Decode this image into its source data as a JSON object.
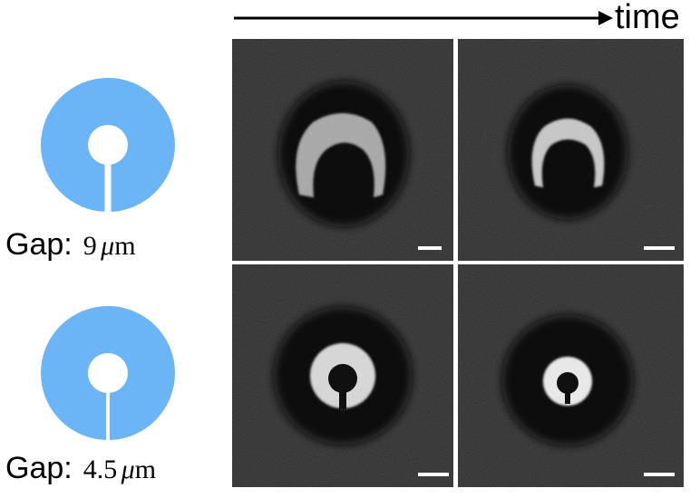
{
  "time_axis": {
    "label": "time"
  },
  "rows": [
    {
      "gap_prefix": "Gap:",
      "gap_value": "9",
      "gap_unit_symbol": "μ",
      "gap_unit": "m"
    },
    {
      "gap_prefix": "Gap:",
      "gap_value": "4.5",
      "gap_unit_symbol": "μ",
      "gap_unit": "m"
    }
  ],
  "colors": {
    "ring_icon": "#6bb5f7",
    "micrograph_background": "#2a2a2a",
    "dark_halo": "#121212",
    "cells": "#d9d9d9",
    "scale_bar": "#ffffff"
  },
  "icons": [
    "open-ring-icon",
    "scale-bar-icon",
    "time-arrow-icon"
  ]
}
